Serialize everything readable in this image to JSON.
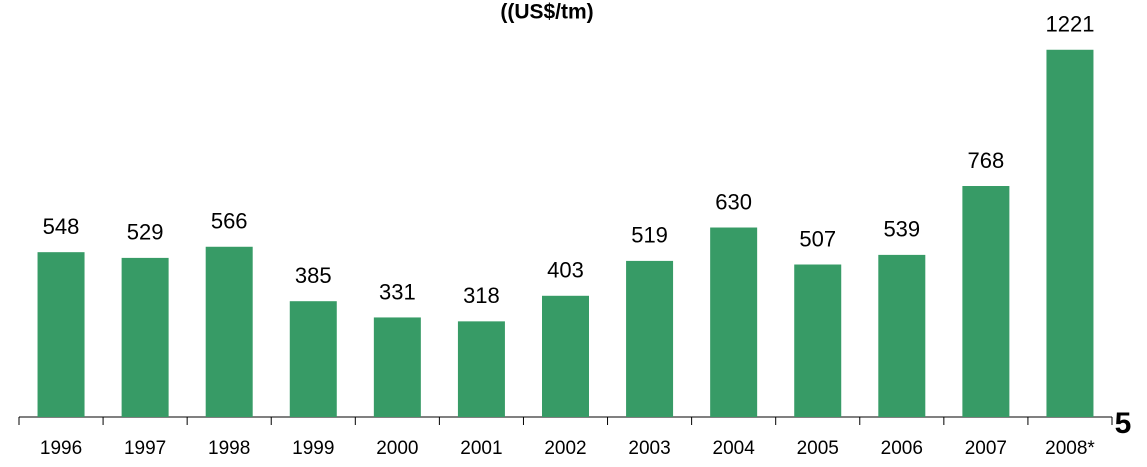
{
  "chart_data": {
    "type": "bar",
    "title": "((US$/tm)",
    "categories": [
      "1996",
      "1997",
      "1998",
      "1999",
      "2000",
      "2001",
      "2002",
      "2003",
      "2004",
      "2005",
      "2006",
      "2007",
      "2008*"
    ],
    "values": [
      548,
      529,
      566,
      385,
      331,
      318,
      403,
      519,
      630,
      507,
      539,
      768,
      1221
    ],
    "color": "#379b66",
    "ylim": [
      0,
      1300
    ]
  },
  "page_number": "5"
}
